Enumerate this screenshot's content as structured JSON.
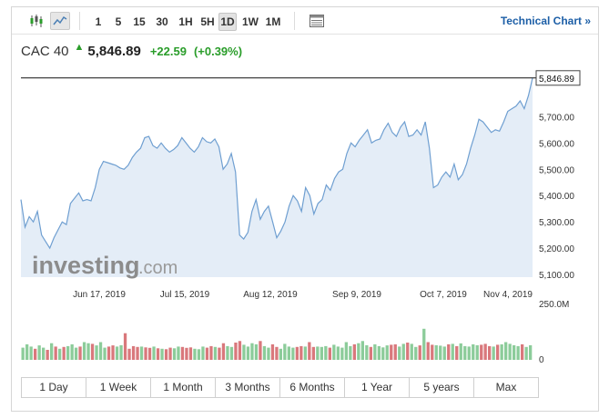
{
  "toolbar": {
    "chart_type_icons": [
      "candlestick-icon",
      "line-chart-icon"
    ],
    "timeframes": [
      "1",
      "5",
      "15",
      "30",
      "1H",
      "5H",
      "1D",
      "1W",
      "1M"
    ],
    "active_timeframe": "1D",
    "table_icon": "table-view-icon",
    "technical_chart_label": "Technical Chart »"
  },
  "quote": {
    "name": "CAC 40",
    "direction": "up",
    "price": "5,846.89",
    "change": "+22.59",
    "change_pct": "(+0.39%)"
  },
  "watermark": {
    "main": "investing",
    "suffix": ".com"
  },
  "colors": {
    "line": "#6f9fd1",
    "fill": "#e4edf7",
    "volume_up": "#8ccc9a",
    "volume_down": "#d9787c",
    "positive": "#2a9d2a",
    "link": "#1d5fa7"
  },
  "chart_data": {
    "type": "area",
    "y_ticks": [
      "5,700.00",
      "5,600.00",
      "5,500.00",
      "5,400.00",
      "5,300.00",
      "5,200.00",
      "5,100.00"
    ],
    "ylim": [
      5090,
      5860
    ],
    "x_ticks": [
      "Jun 17, 2019",
      "Jul 15, 2019",
      "Aug 12, 2019",
      "Sep 9, 2019",
      "Oct 7, 2019",
      "Nov 4, 2019"
    ],
    "last_price_label": "5,846.89",
    "last_price": 5846.89,
    "values": [
      5385,
      5280,
      5320,
      5300,
      5340,
      5250,
      5225,
      5200,
      5240,
      5270,
      5300,
      5290,
      5370,
      5390,
      5410,
      5380,
      5385,
      5380,
      5430,
      5500,
      5530,
      5525,
      5520,
      5515,
      5505,
      5500,
      5515,
      5545,
      5565,
      5580,
      5620,
      5625,
      5590,
      5580,
      5600,
      5580,
      5565,
      5575,
      5590,
      5620,
      5600,
      5580,
      5565,
      5585,
      5620,
      5605,
      5600,
      5615,
      5585,
      5500,
      5520,
      5560,
      5490,
      5250,
      5235,
      5260,
      5340,
      5385,
      5310,
      5340,
      5360,
      5300,
      5240,
      5265,
      5300,
      5360,
      5400,
      5380,
      5340,
      5430,
      5400,
      5330,
      5370,
      5385,
      5440,
      5420,
      5465,
      5490,
      5500,
      5560,
      5600,
      5585,
      5610,
      5630,
      5650,
      5600,
      5610,
      5615,
      5650,
      5675,
      5640,
      5625,
      5660,
      5680,
      5625,
      5630,
      5650,
      5630,
      5680,
      5580,
      5430,
      5440,
      5470,
      5490,
      5470,
      5520,
      5460,
      5480,
      5520,
      5580,
      5630,
      5690,
      5680,
      5660,
      5640,
      5650,
      5645,
      5680,
      5720,
      5730,
      5740,
      5760,
      5730,
      5780,
      5846.89
    ],
    "volume_label": "250.0M",
    "volume_zero_label": "0",
    "volume_max": 250,
    "volumes": [
      55,
      70,
      60,
      50,
      65,
      55,
      45,
      75,
      60,
      50,
      58,
      62,
      70,
      55,
      60,
      80,
      75,
      72,
      65,
      80,
      55,
      60,
      65,
      60,
      66,
      120,
      50,
      62,
      58,
      60,
      56,
      54,
      60,
      52,
      50,
      48,
      55,
      52,
      60,
      58,
      54,
      56,
      50,
      48,
      60,
      55,
      62,
      58,
      55,
      75,
      62,
      58,
      78,
      85,
      68,
      60,
      75,
      70,
      85,
      62,
      55,
      70,
      58,
      50,
      72,
      60,
      55,
      58,
      62,
      60,
      80,
      58,
      60,
      58,
      62,
      55,
      68,
      60,
      55,
      80,
      62,
      70,
      75,
      85,
      66,
      58,
      70,
      62,
      56,
      65,
      68,
      70,
      60,
      72,
      78,
      72,
      58,
      65,
      140,
      80,
      68,
      66,
      64,
      60,
      70,
      72,
      62,
      74,
      62,
      60,
      70,
      66,
      68,
      72,
      62,
      60,
      68,
      70,
      80,
      72,
      66,
      62,
      70,
      58,
      66
    ],
    "volume_up": [
      true,
      true,
      true,
      false,
      true,
      true,
      false,
      true,
      false,
      true,
      false,
      true,
      true,
      true,
      false,
      true,
      true,
      false,
      true,
      true,
      true,
      false,
      false,
      true,
      true,
      false,
      false,
      false,
      false,
      true,
      false,
      false,
      true,
      false,
      true,
      false,
      false,
      true,
      true,
      false,
      false,
      false,
      true,
      true,
      true,
      false,
      false,
      true,
      false,
      false,
      true,
      true,
      false,
      false,
      true,
      true,
      true,
      true,
      false,
      true,
      true,
      false,
      false,
      true,
      true,
      true,
      true,
      false,
      false,
      true,
      false,
      false,
      true,
      true,
      true,
      false,
      true,
      true,
      true,
      true,
      true,
      false,
      true,
      true,
      true,
      false,
      true,
      true,
      true,
      true,
      false,
      false,
      true,
      true,
      false,
      true,
      true,
      false,
      true,
      false,
      false,
      true,
      true,
      true,
      false,
      true,
      false,
      true,
      true,
      true,
      true,
      true,
      false,
      false,
      false,
      true,
      false,
      true,
      true,
      true,
      true,
      true,
      false,
      true,
      true
    ]
  },
  "range_tabs": [
    "1 Day",
    "1 Week",
    "1 Month",
    "3 Months",
    "6 Months",
    "1 Year",
    "5 years",
    "Max"
  ]
}
